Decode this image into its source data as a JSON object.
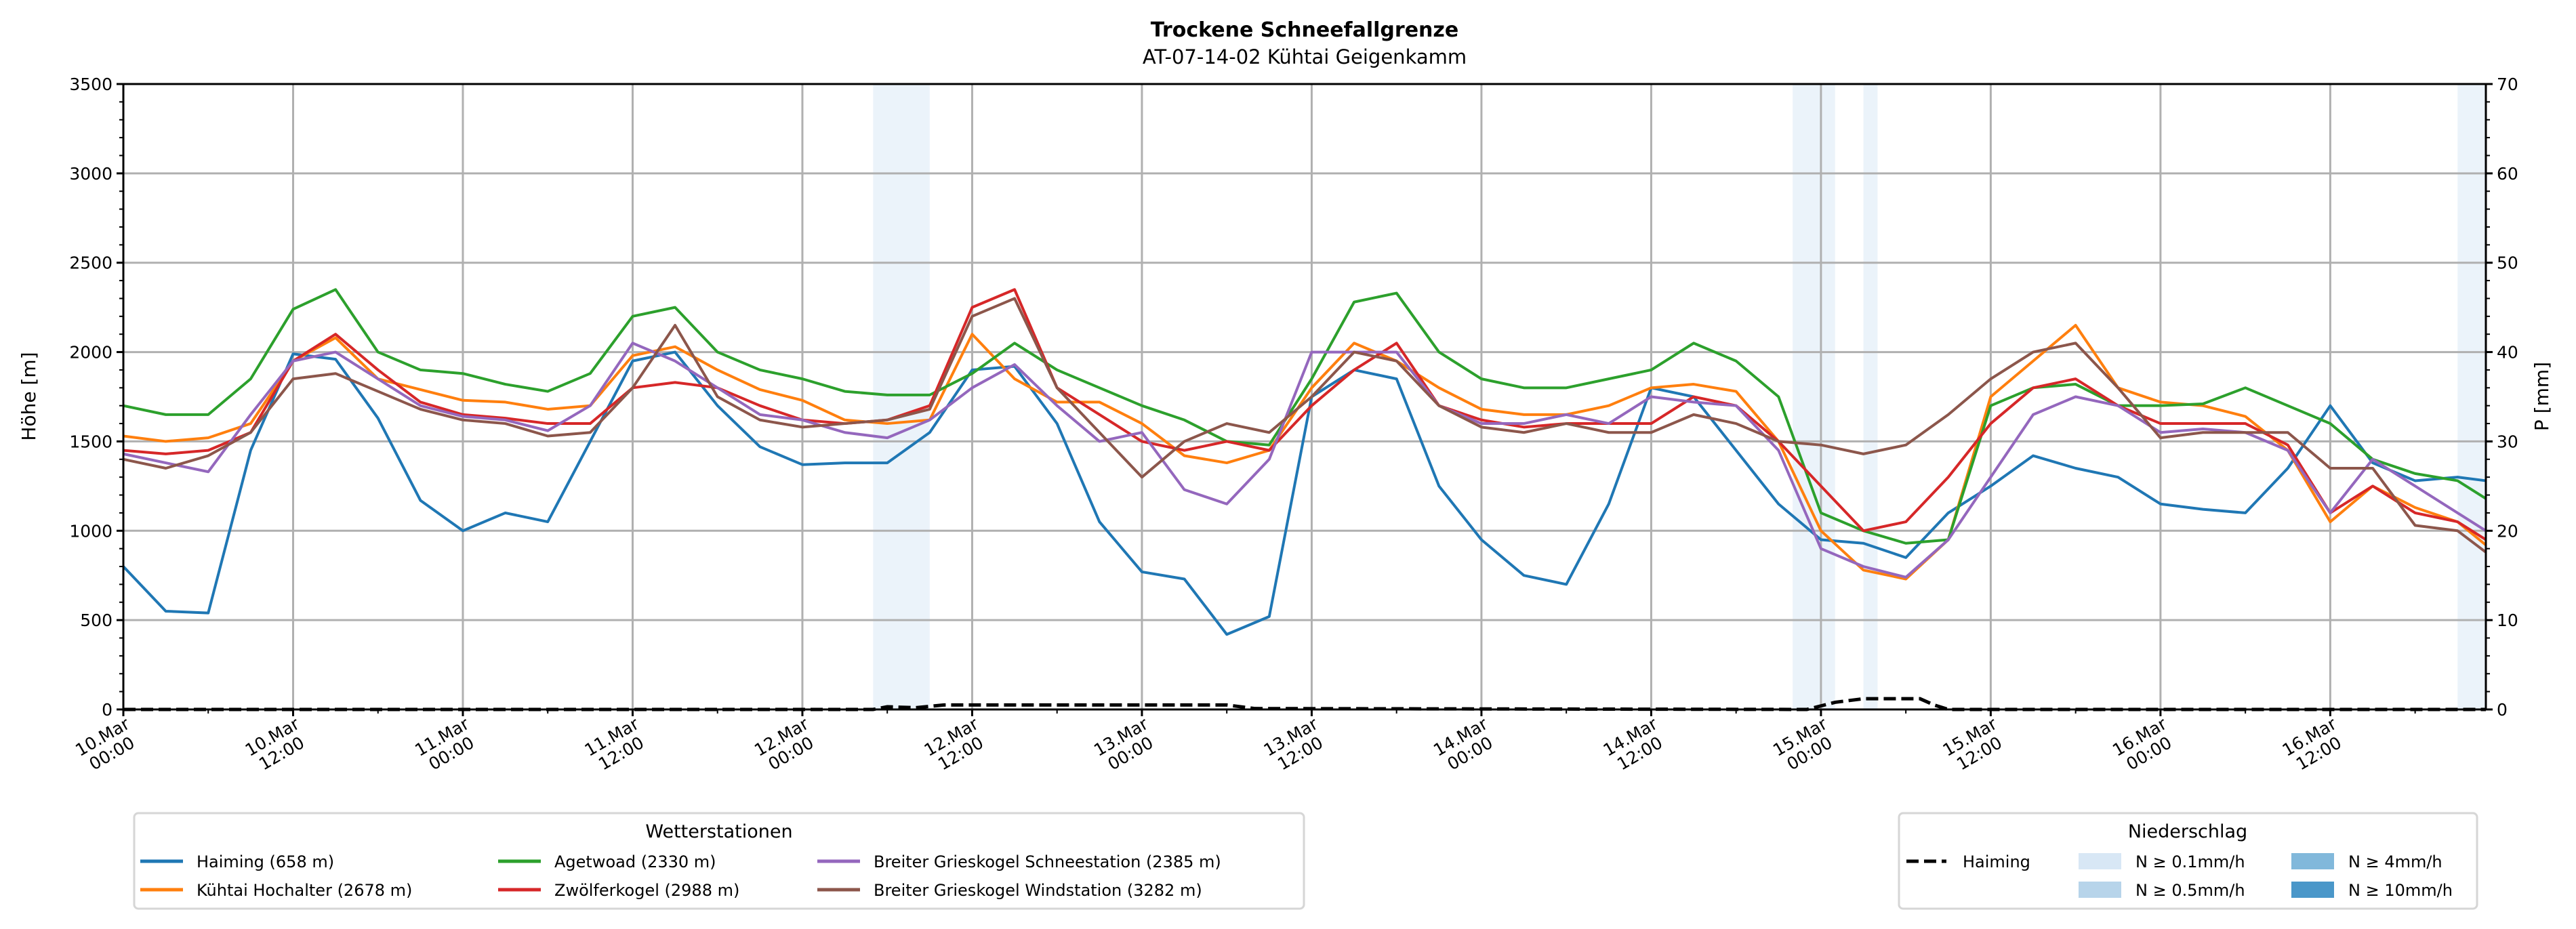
{
  "chart_data": {
    "type": "line",
    "title": "Trockene Schneefallgrenze",
    "subtitle": "AT-07-14-02 Kühtai Geigenkamm",
    "ylabel": "Höhe [m]",
    "y2label": "P [mm]",
    "xunit": "hours since 10.Mar 00:00",
    "xlim": [
      0,
      167
    ],
    "ylim": [
      0,
      3500
    ],
    "y2lim": [
      0,
      70
    ],
    "grid": true,
    "yticks": [
      "0",
      "500",
      "1000",
      "1500",
      "2000",
      "2500",
      "3000",
      "3500"
    ],
    "y2ticks": [
      "0",
      "10",
      "20",
      "30",
      "40",
      "50",
      "60",
      "70"
    ],
    "xticks": [
      {
        "h": 0,
        "d": "10.Mar",
        "t": "00:00"
      },
      {
        "h": 12,
        "d": "10.Mar",
        "t": "12:00"
      },
      {
        "h": 24,
        "d": "11.Mar",
        "t": "00:00"
      },
      {
        "h": 36,
        "d": "11.Mar",
        "t": "12:00"
      },
      {
        "h": 48,
        "d": "12.Mar",
        "t": "00:00"
      },
      {
        "h": 60,
        "d": "12.Mar",
        "t": "12:00"
      },
      {
        "h": 72,
        "d": "13.Mar",
        "t": "00:00"
      },
      {
        "h": 84,
        "d": "13.Mar",
        "t": "12:00"
      },
      {
        "h": 96,
        "d": "14.Mar",
        "t": "00:00"
      },
      {
        "h": 108,
        "d": "14.Mar",
        "t": "12:00"
      },
      {
        "h": 120,
        "d": "15.Mar",
        "t": "00:00"
      },
      {
        "h": 132,
        "d": "15.Mar",
        "t": "12:00"
      },
      {
        "h": 144,
        "d": "16.Mar",
        "t": "00:00"
      },
      {
        "h": 156,
        "d": "16.Mar",
        "t": "12:00"
      }
    ],
    "x": [
      0,
      3,
      6,
      9,
      12,
      15,
      18,
      21,
      24,
      27,
      30,
      33,
      36,
      39,
      42,
      45,
      48,
      51,
      54,
      57,
      60,
      63,
      66,
      69,
      72,
      75,
      78,
      81,
      84,
      87,
      90,
      93,
      96,
      99,
      102,
      105,
      108,
      111,
      114,
      117,
      120,
      123,
      126,
      129,
      132,
      135,
      138,
      141,
      144,
      147,
      150,
      153,
      156,
      159,
      162,
      165,
      167
    ],
    "series": [
      {
        "name": "Haiming (658 m)",
        "color": "#1f77b4",
        "values": [
          800,
          550,
          540,
          1450,
          1990,
          1960,
          1630,
          1170,
          1000,
          1100,
          1050,
          1500,
          1950,
          2000,
          1700,
          1470,
          1370,
          1380,
          1380,
          1550,
          1900,
          1920,
          1600,
          1050,
          770,
          730,
          420,
          520,
          1750,
          1900,
          1850,
          1250,
          950,
          750,
          700,
          1150,
          1800,
          1750,
          1450,
          1150,
          950,
          930,
          850,
          1100,
          1250,
          1420,
          1350,
          1300,
          1150,
          1120,
          1100,
          1350,
          1700,
          1380,
          1280,
          1300,
          1280
        ]
      },
      {
        "name": "Kühtai Hochalter (2678 m)",
        "color": "#ff7f0e",
        "values": [
          1530,
          1500,
          1520,
          1600,
          1950,
          2080,
          1850,
          1790,
          1730,
          1720,
          1680,
          1700,
          1980,
          2030,
          1900,
          1790,
          1730,
          1620,
          1600,
          1620,
          2100,
          1850,
          1720,
          1720,
          1600,
          1420,
          1380,
          1450,
          1800,
          2050,
          1950,
          1800,
          1680,
          1650,
          1650,
          1700,
          1800,
          1820,
          1780,
          1500,
          1000,
          780,
          730,
          950,
          1750,
          1950,
          2150,
          1800,
          1720,
          1700,
          1640,
          1450,
          1050,
          1250,
          1130,
          1050,
          920
        ]
      },
      {
        "name": "Agetwoad (2330 m)",
        "color": "#2ca02c",
        "values": [
          1700,
          1650,
          1650,
          1850,
          2240,
          2350,
          2000,
          1900,
          1880,
          1820,
          1780,
          1880,
          2200,
          2250,
          2000,
          1900,
          1850,
          1780,
          1760,
          1760,
          1880,
          2050,
          1900,
          1800,
          1700,
          1620,
          1500,
          1480,
          1850,
          2280,
          2330,
          2000,
          1850,
          1800,
          1800,
          1850,
          1900,
          2050,
          1950,
          1750,
          1100,
          1000,
          930,
          950,
          1700,
          1800,
          1820,
          1700,
          1700,
          1710,
          1800,
          1700,
          1600,
          1400,
          1320,
          1280,
          1180
        ]
      },
      {
        "name": "Zwölferkogel (2988 m)",
        "color": "#d62728",
        "values": [
          1450,
          1430,
          1450,
          1550,
          1950,
          2100,
          1900,
          1720,
          1650,
          1630,
          1600,
          1600,
          1800,
          1830,
          1800,
          1700,
          1620,
          1600,
          1620,
          1700,
          2250,
          2350,
          1800,
          1650,
          1500,
          1450,
          1500,
          1450,
          1700,
          1900,
          2050,
          1700,
          1620,
          1580,
          1600,
          1600,
          1600,
          1750,
          1700,
          1500,
          1250,
          1000,
          1050,
          1300,
          1600,
          1800,
          1850,
          1700,
          1600,
          1600,
          1600,
          1480,
          1100,
          1250,
          1100,
          1050,
          950
        ]
      },
      {
        "name": "Breiter Grieskogel Schneestation (2385 m)",
        "color": "#9467bd",
        "values": [
          1430,
          1380,
          1330,
          1650,
          1950,
          2000,
          1850,
          1700,
          1640,
          1620,
          1560,
          1700,
          2050,
          1950,
          1800,
          1650,
          1620,
          1550,
          1520,
          1620,
          1800,
          1930,
          1700,
          1500,
          1550,
          1230,
          1150,
          1400,
          2000,
          2000,
          2000,
          1700,
          1600,
          1600,
          1650,
          1600,
          1750,
          1720,
          1700,
          1450,
          900,
          800,
          740,
          950,
          1300,
          1650,
          1750,
          1700,
          1550,
          1570,
          1550,
          1450,
          1100,
          1400,
          1250,
          1100,
          1000
        ]
      },
      {
        "name": "Breiter Grieskogel Windstation (3282 m)",
        "color": "#8c564b",
        "values": [
          1400,
          1350,
          1420,
          1550,
          1850,
          1880,
          1780,
          1680,
          1620,
          1600,
          1530,
          1550,
          1800,
          2150,
          1750,
          1620,
          1580,
          1600,
          1620,
          1680,
          2200,
          2300,
          1800,
          1550,
          1300,
          1500,
          1600,
          1550,
          1750,
          2000,
          1950,
          1700,
          1580,
          1550,
          1600,
          1550,
          1550,
          1650,
          1600,
          1500,
          1480,
          1430,
          1480,
          1650,
          1850,
          2000,
          2050,
          1800,
          1520,
          1550,
          1550,
          1550,
          1350,
          1350,
          1030,
          1000,
          880
        ]
      }
    ],
    "precip_line": {
      "name": "Haiming",
      "color": "#000000",
      "x": [
        0,
        53,
        54,
        56,
        58,
        78,
        80,
        119,
        121,
        123,
        127,
        128,
        129,
        167
      ],
      "values": [
        0,
        0,
        0.3,
        0.2,
        0.5,
        0.5,
        0.1,
        0,
        0.8,
        1.2,
        1.2,
        0.5,
        0,
        0
      ]
    },
    "precip_bands": [
      {
        "from": 53,
        "to": 57,
        "level": 0
      },
      {
        "from": 118,
        "to": 121,
        "level": 0
      },
      {
        "from": 123,
        "to": 124,
        "level": 0
      },
      {
        "from": 165,
        "to": 167,
        "level": 0
      }
    ],
    "legend_stations": {
      "title": "Wetterstationen",
      "placement": "bottom-left"
    },
    "legend_precip": {
      "title": "Niederschlag",
      "placement": "bottom-right",
      "line_label": "Haiming",
      "levels": [
        {
          "label": "N ≥ 0.1mm/h",
          "color": "#d8e7f5"
        },
        {
          "label": "N ≥ 0.5mm/h",
          "color": "#b7d4ea"
        },
        {
          "label": "N ≥ 4mm/h",
          "color": "#81b8db"
        },
        {
          "label": "N ≥ 10mm/h",
          "color": "#4a97c9"
        }
      ]
    }
  }
}
